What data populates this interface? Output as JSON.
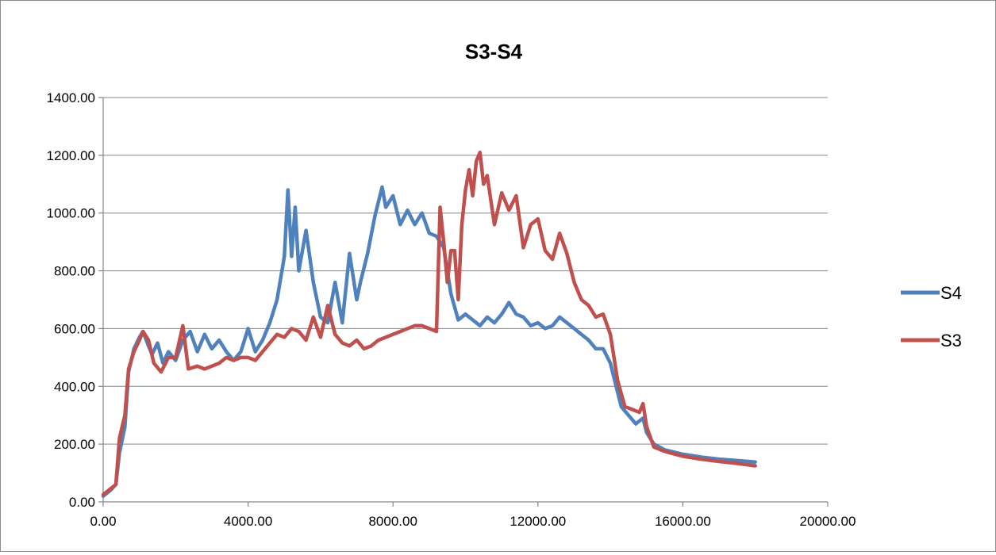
{
  "chart_data": {
    "type": "line",
    "title": "S3-S4",
    "xlabel": "",
    "ylabel": "",
    "xlim": [
      0,
      20000
    ],
    "ylim": [
      0,
      1400
    ],
    "x_ticks": [
      0,
      4000,
      8000,
      12000,
      16000,
      20000
    ],
    "x_tick_labels": [
      "0.00",
      "4000.00",
      "8000.00",
      "12000.00",
      "16000.00",
      "20000.00"
    ],
    "y_ticks": [
      0,
      200,
      400,
      600,
      800,
      1000,
      1200,
      1400
    ],
    "y_tick_labels": [
      "0.00",
      "200.00",
      "400.00",
      "600.00",
      "800.00",
      "1000.00",
      "1200.00",
      "1400.00"
    ],
    "grid": true,
    "legend_position": "right",
    "series": [
      {
        "name": "S4",
        "color": "#4f81bd",
        "points": [
          [
            0,
            20
          ],
          [
            200,
            40
          ],
          [
            350,
            60
          ],
          [
            450,
            170
          ],
          [
            600,
            260
          ],
          [
            700,
            450
          ],
          [
            850,
            530
          ],
          [
            1000,
            570
          ],
          [
            1100,
            590
          ],
          [
            1250,
            540
          ],
          [
            1350,
            510
          ],
          [
            1500,
            550
          ],
          [
            1650,
            480
          ],
          [
            1800,
            520
          ],
          [
            2000,
            490
          ],
          [
            2200,
            560
          ],
          [
            2400,
            590
          ],
          [
            2600,
            520
          ],
          [
            2800,
            580
          ],
          [
            3000,
            530
          ],
          [
            3200,
            560
          ],
          [
            3400,
            520
          ],
          [
            3600,
            490
          ],
          [
            3800,
            520
          ],
          [
            4000,
            600
          ],
          [
            4200,
            520
          ],
          [
            4400,
            560
          ],
          [
            4600,
            620
          ],
          [
            4800,
            700
          ],
          [
            5000,
            850
          ],
          [
            5100,
            1080
          ],
          [
            5200,
            850
          ],
          [
            5300,
            1020
          ],
          [
            5400,
            800
          ],
          [
            5600,
            940
          ],
          [
            5800,
            760
          ],
          [
            6000,
            640
          ],
          [
            6200,
            620
          ],
          [
            6400,
            760
          ],
          [
            6600,
            620
          ],
          [
            6800,
            860
          ],
          [
            7000,
            700
          ],
          [
            7100,
            760
          ],
          [
            7300,
            860
          ],
          [
            7500,
            990
          ],
          [
            7700,
            1090
          ],
          [
            7800,
            1020
          ],
          [
            8000,
            1060
          ],
          [
            8200,
            960
          ],
          [
            8400,
            1010
          ],
          [
            8600,
            960
          ],
          [
            8800,
            1000
          ],
          [
            9000,
            930
          ],
          [
            9200,
            920
          ],
          [
            9400,
            880
          ],
          [
            9600,
            720
          ],
          [
            9800,
            630
          ],
          [
            10000,
            650
          ],
          [
            10200,
            630
          ],
          [
            10400,
            610
          ],
          [
            10600,
            640
          ],
          [
            10800,
            620
          ],
          [
            11000,
            650
          ],
          [
            11200,
            690
          ],
          [
            11400,
            650
          ],
          [
            11600,
            640
          ],
          [
            11800,
            610
          ],
          [
            12000,
            620
          ],
          [
            12200,
            600
          ],
          [
            12400,
            610
          ],
          [
            12600,
            640
          ],
          [
            12800,
            620
          ],
          [
            13000,
            600
          ],
          [
            13200,
            580
          ],
          [
            13400,
            560
          ],
          [
            13600,
            530
          ],
          [
            13800,
            530
          ],
          [
            14000,
            480
          ],
          [
            14200,
            380
          ],
          [
            14300,
            330
          ],
          [
            14500,
            300
          ],
          [
            14700,
            270
          ],
          [
            14900,
            290
          ],
          [
            15000,
            240
          ],
          [
            15200,
            200
          ],
          [
            15500,
            180
          ],
          [
            16000,
            165
          ],
          [
            16500,
            155
          ],
          [
            17000,
            148
          ],
          [
            17500,
            143
          ],
          [
            18000,
            138
          ]
        ]
      },
      {
        "name": "S3",
        "color": "#c0504d",
        "points": [
          [
            0,
            25
          ],
          [
            200,
            45
          ],
          [
            350,
            60
          ],
          [
            450,
            220
          ],
          [
            600,
            300
          ],
          [
            700,
            460
          ],
          [
            850,
            520
          ],
          [
            1000,
            560
          ],
          [
            1100,
            590
          ],
          [
            1250,
            560
          ],
          [
            1400,
            480
          ],
          [
            1600,
            450
          ],
          [
            1800,
            500
          ],
          [
            2000,
            500
          ],
          [
            2200,
            610
          ],
          [
            2350,
            460
          ],
          [
            2600,
            470
          ],
          [
            2800,
            460
          ],
          [
            3000,
            470
          ],
          [
            3200,
            480
          ],
          [
            3400,
            500
          ],
          [
            3600,
            490
          ],
          [
            3800,
            500
          ],
          [
            4000,
            500
          ],
          [
            4200,
            490
          ],
          [
            4400,
            520
          ],
          [
            4600,
            550
          ],
          [
            4800,
            580
          ],
          [
            5000,
            570
          ],
          [
            5200,
            600
          ],
          [
            5400,
            590
          ],
          [
            5600,
            560
          ],
          [
            5800,
            640
          ],
          [
            6000,
            570
          ],
          [
            6200,
            680
          ],
          [
            6400,
            580
          ],
          [
            6600,
            550
          ],
          [
            6800,
            540
          ],
          [
            7000,
            560
          ],
          [
            7200,
            530
          ],
          [
            7400,
            540
          ],
          [
            7600,
            560
          ],
          [
            7800,
            570
          ],
          [
            8000,
            580
          ],
          [
            8200,
            590
          ],
          [
            8400,
            600
          ],
          [
            8600,
            610
          ],
          [
            8800,
            610
          ],
          [
            9000,
            600
          ],
          [
            9200,
            590
          ],
          [
            9300,
            1020
          ],
          [
            9400,
            900
          ],
          [
            9500,
            760
          ],
          [
            9600,
            870
          ],
          [
            9700,
            870
          ],
          [
            9800,
            700
          ],
          [
            9900,
            960
          ],
          [
            10000,
            1080
          ],
          [
            10100,
            1150
          ],
          [
            10200,
            1060
          ],
          [
            10300,
            1180
          ],
          [
            10400,
            1210
          ],
          [
            10500,
            1100
          ],
          [
            10600,
            1130
          ],
          [
            10800,
            960
          ],
          [
            11000,
            1070
          ],
          [
            11200,
            1010
          ],
          [
            11400,
            1060
          ],
          [
            11600,
            880
          ],
          [
            11800,
            960
          ],
          [
            12000,
            980
          ],
          [
            12200,
            870
          ],
          [
            12400,
            840
          ],
          [
            12600,
            930
          ],
          [
            12800,
            860
          ],
          [
            13000,
            760
          ],
          [
            13200,
            700
          ],
          [
            13400,
            680
          ],
          [
            13600,
            640
          ],
          [
            13800,
            650
          ],
          [
            14000,
            580
          ],
          [
            14200,
            420
          ],
          [
            14400,
            330
          ],
          [
            14600,
            320
          ],
          [
            14800,
            310
          ],
          [
            14900,
            340
          ],
          [
            15000,
            260
          ],
          [
            15200,
            190
          ],
          [
            15500,
            175
          ],
          [
            16000,
            158
          ],
          [
            16500,
            148
          ],
          [
            17000,
            140
          ],
          [
            17500,
            133
          ],
          [
            18000,
            125
          ]
        ]
      }
    ]
  }
}
